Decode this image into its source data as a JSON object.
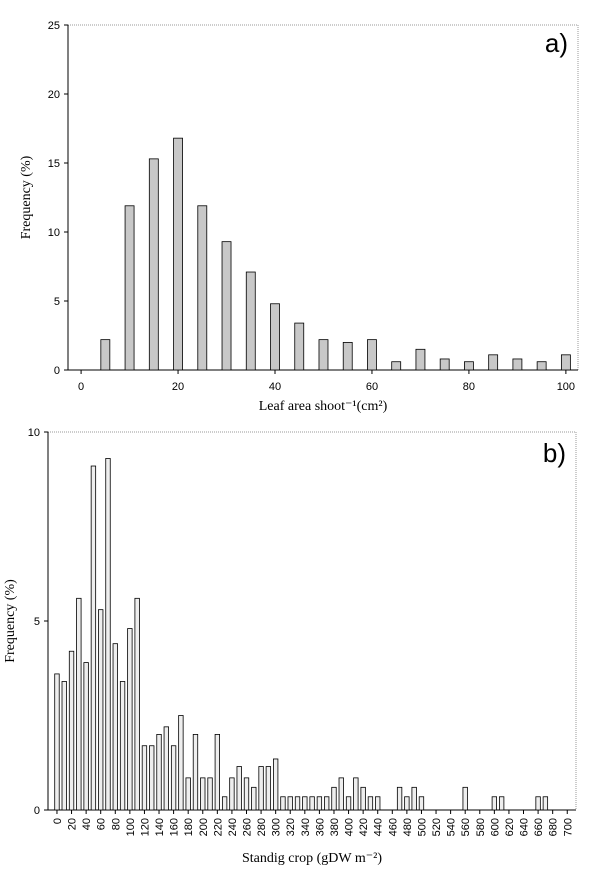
{
  "chart_data": [
    {
      "type": "bar",
      "annotation": "a)",
      "ylabel": "Frequency (%)",
      "xlabel": "Leaf area shoot⁻¹(cm²)",
      "x": [
        5,
        10,
        15,
        20,
        25,
        30,
        35,
        40,
        45,
        50,
        55,
        60,
        65,
        70,
        75,
        80,
        85,
        90,
        95,
        100
      ],
      "values": [
        2.2,
        11.9,
        15.3,
        16.8,
        11.9,
        9.3,
        7.1,
        4.8,
        3.4,
        2.2,
        2.0,
        2.2,
        0.6,
        1.5,
        0.8,
        0.6,
        1.1,
        0.8,
        0.6,
        1.1
      ],
      "color": "#c8c8c8",
      "xlim": [
        -2.7,
        102.5
      ],
      "xticks": [
        0,
        20,
        40,
        60,
        80,
        100
      ],
      "ylim": [
        0,
        25
      ],
      "yticks": [
        0,
        5,
        10,
        15,
        20,
        25
      ]
    },
    {
      "type": "bar",
      "annotation": "b)",
      "ylabel": "Frequency (%)",
      "xlabel": "Standig crop (gDW m⁻²)",
      "x": [
        0,
        10,
        20,
        30,
        40,
        50,
        60,
        70,
        80,
        90,
        100,
        110,
        120,
        130,
        140,
        150,
        160,
        170,
        180,
        190,
        200,
        210,
        220,
        230,
        240,
        250,
        260,
        270,
        280,
        290,
        300,
        310,
        320,
        330,
        340,
        350,
        360,
        370,
        380,
        390,
        400,
        410,
        420,
        430,
        440,
        470,
        480,
        490,
        500,
        560,
        600,
        610,
        660,
        670
      ],
      "values": [
        3.6,
        3.4,
        4.2,
        5.6,
        3.9,
        9.1,
        5.3,
        9.3,
        4.4,
        3.4,
        4.8,
        5.6,
        1.7,
        1.7,
        2.0,
        2.2,
        1.7,
        2.5,
        0.85,
        2.0,
        0.85,
        0.85,
        2.0,
        0.35,
        0.85,
        1.15,
        0.85,
        0.6,
        1.15,
        1.15,
        1.35,
        0.35,
        0.35,
        0.35,
        0.35,
        0.35,
        0.35,
        0.35,
        0.6,
        0.85,
        0.35,
        0.85,
        0.6,
        0.35,
        0.35,
        0.6,
        0.35,
        0.6,
        0.35,
        0.6,
        0.35,
        0.35,
        0.35,
        0.35
      ],
      "color": "#eeeeee",
      "xlim": [
        -12.3,
        712
      ],
      "xticks": [
        0,
        20,
        40,
        60,
        80,
        100,
        120,
        140,
        160,
        180,
        200,
        220,
        240,
        260,
        280,
        300,
        320,
        340,
        360,
        380,
        400,
        420,
        440,
        460,
        480,
        500,
        520,
        540,
        560,
        580,
        600,
        620,
        640,
        660,
        680,
        700
      ],
      "ylim": [
        0,
        10
      ],
      "yticks": [
        0,
        5,
        10
      ]
    }
  ]
}
